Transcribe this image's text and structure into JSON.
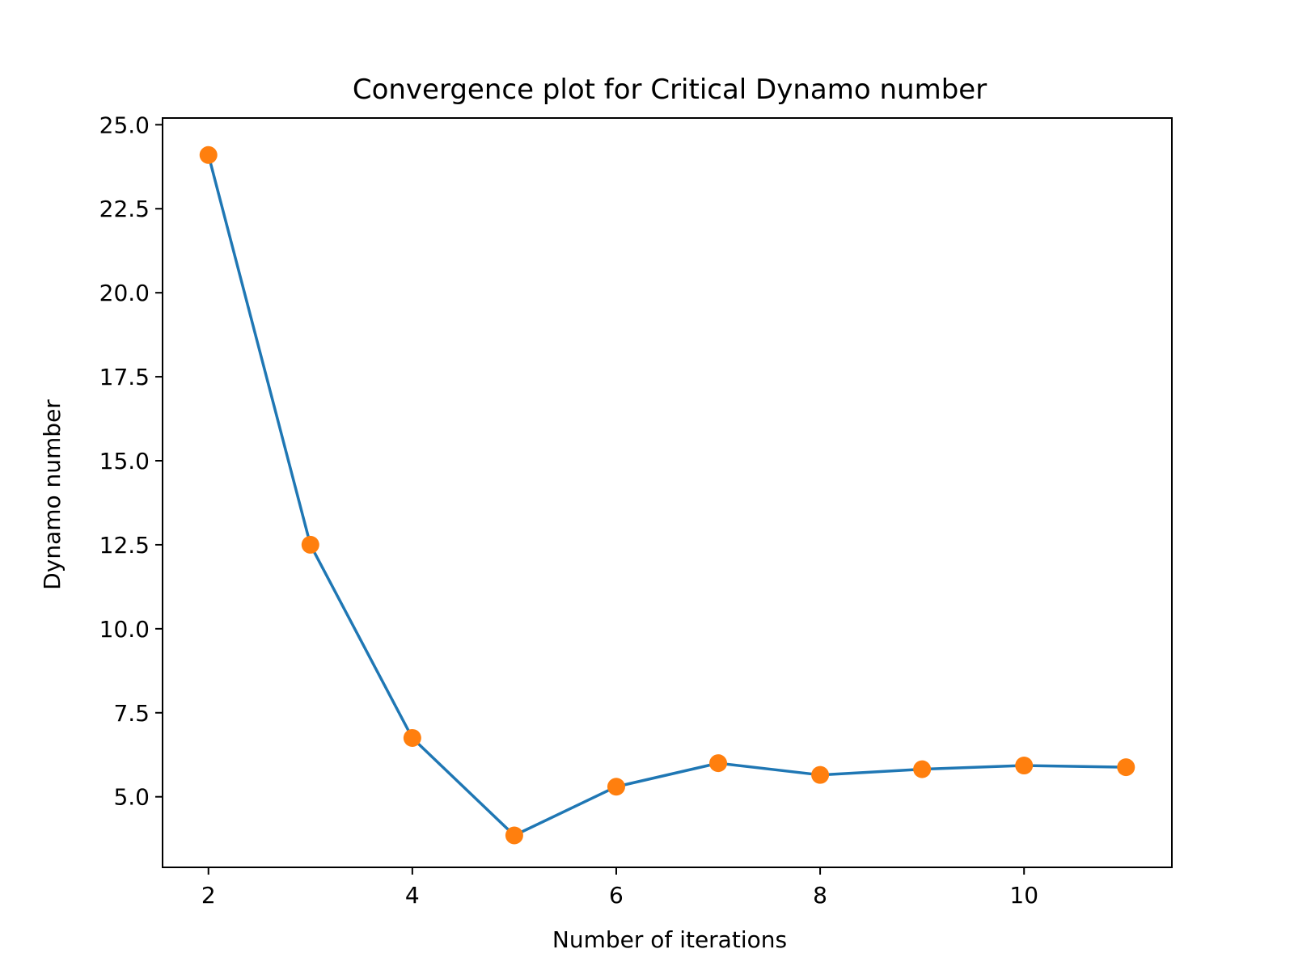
{
  "chart_data": {
    "type": "line",
    "title": "Convergence plot for Critical Dynamo number",
    "xlabel": "Number of iterations",
    "ylabel": "Dynamo number",
    "xlim": [
      1.55,
      11.45
    ],
    "ylim": [
      2.9,
      25.2
    ],
    "xticks": [
      2,
      4,
      6,
      8,
      10
    ],
    "yticks": [
      5.0,
      7.5,
      10.0,
      12.5,
      15.0,
      17.5,
      20.0,
      22.5,
      25.0
    ],
    "grid": false,
    "series": [
      {
        "x": [
          2,
          3,
          4,
          5,
          6,
          7,
          8,
          9,
          10,
          11
        ],
        "values": [
          24.1,
          12.5,
          6.75,
          3.85,
          5.3,
          6.0,
          5.65,
          5.82,
          5.93,
          5.88
        ],
        "line_color": "#1f77b4",
        "marker_color": "#ff7f0e"
      }
    ]
  }
}
